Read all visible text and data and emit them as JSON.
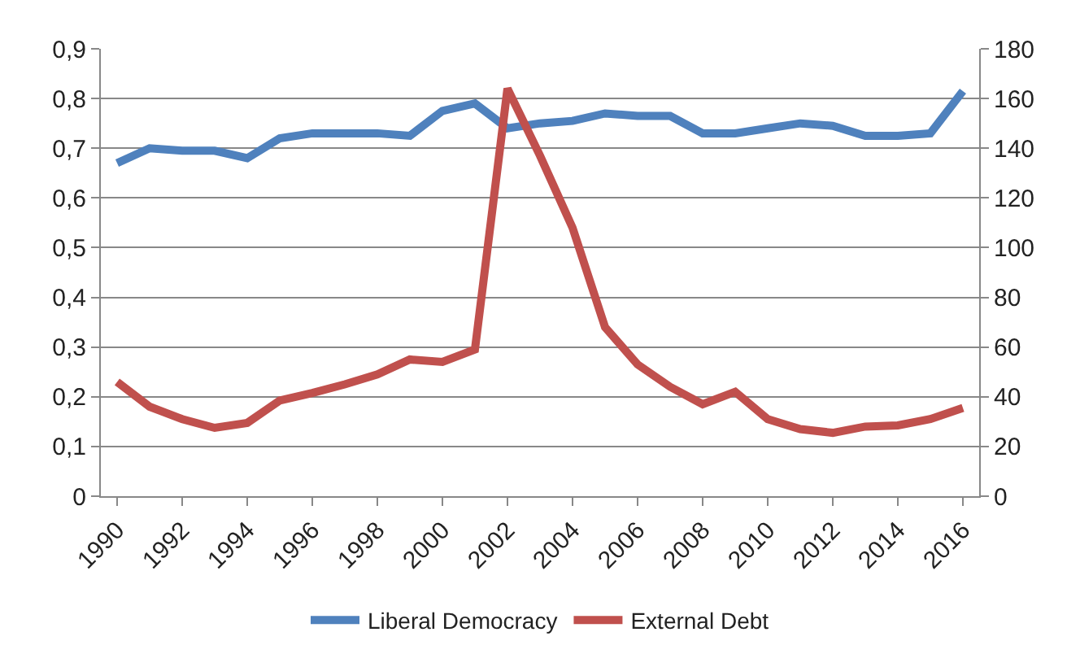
{
  "chart_data": {
    "type": "line",
    "x": [
      1990,
      1991,
      1992,
      1993,
      1994,
      1995,
      1996,
      1997,
      1998,
      1999,
      2000,
      2001,
      2002,
      2003,
      2004,
      2005,
      2006,
      2007,
      2008,
      2009,
      2010,
      2011,
      2012,
      2013,
      2014,
      2015,
      2016
    ],
    "xlim": [
      1989.5,
      2016.5
    ],
    "xticks": [
      1990,
      1992,
      1994,
      1996,
      1998,
      2000,
      2002,
      2004,
      2006,
      2008,
      2010,
      2012,
      2014,
      2016
    ],
    "ylim": [
      0,
      0.9
    ],
    "yticks": [
      {
        "value": 0,
        "label": "0"
      },
      {
        "value": 0.1,
        "label": "0,1"
      },
      {
        "value": 0.2,
        "label": "0,2"
      },
      {
        "value": 0.3,
        "label": "0,3"
      },
      {
        "value": 0.4,
        "label": "0,4"
      },
      {
        "value": 0.5,
        "label": "0,5"
      },
      {
        "value": 0.6,
        "label": "0,6"
      },
      {
        "value": 0.7,
        "label": "0,7"
      },
      {
        "value": 0.8,
        "label": "0,8"
      },
      {
        "value": 0.9,
        "label": "0,9"
      }
    ],
    "y2lim": [
      0,
      180
    ],
    "y2ticks": [
      0,
      20,
      40,
      60,
      80,
      100,
      120,
      140,
      160,
      180
    ],
    "grid": "y",
    "legend": "bottom",
    "line_style": "solid",
    "series": [
      {
        "name": "Liberal Democracy",
        "color": "#4f81bd",
        "values": [
          0.67,
          0.7,
          0.695,
          0.695,
          0.68,
          0.72,
          0.73,
          0.73,
          0.73,
          0.725,
          0.775,
          0.79,
          0.74,
          0.75,
          0.755,
          0.77,
          0.765,
          0.765,
          0.73,
          0.73,
          0.74,
          0.75,
          0.745,
          0.725,
          0.725,
          0.73,
          0.815
        ]
      },
      {
        "name": "External Debt",
        "color": "#c0504d",
        "axis": "y2",
        "values": [
          46,
          36,
          31,
          27.5,
          29.5,
          38.5,
          41.5,
          45,
          49,
          55,
          54,
          59,
          164,
          137,
          108,
          68,
          53,
          44,
          37,
          42,
          31,
          27,
          25.5,
          28,
          28.5,
          31,
          35.5
        ]
      }
    ]
  }
}
